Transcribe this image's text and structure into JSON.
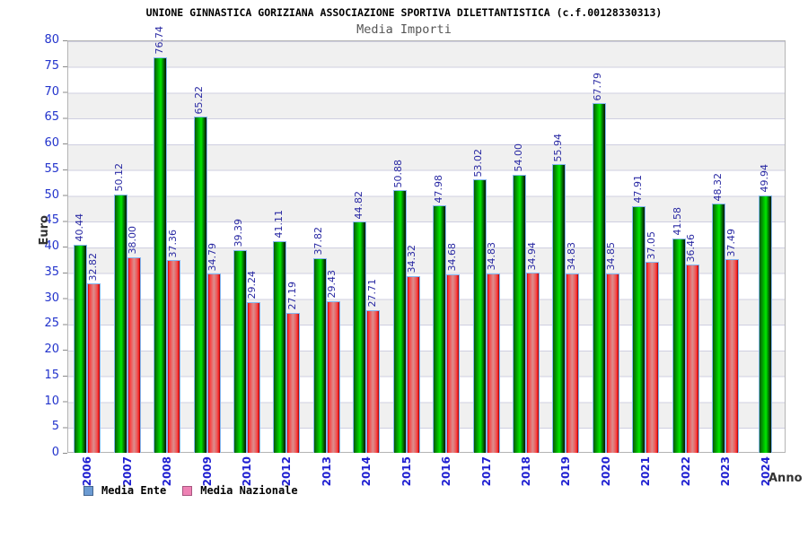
{
  "header": {
    "title": "UNIONE GINNASTICA GORIZIANA ASSOCIAZIONE SPORTIVA DILETTANTISTICA (c.f.00128330313)",
    "subtitle": "Media Importi"
  },
  "axes": {
    "y_label": "Euro",
    "x_label": "Anno",
    "y_ticks": [
      0,
      5,
      10,
      15,
      20,
      25,
      30,
      35,
      40,
      45,
      50,
      55,
      60,
      65,
      70,
      75,
      80
    ]
  },
  "legend": [
    {
      "label": "Media Ente",
      "color": "#6c9bd2"
    },
    {
      "label": "Media Nazionale",
      "color": "#ee82b4"
    }
  ],
  "colors": {
    "bar_ente_main": "#00cc00",
    "bar_nazionale_main": "#ee3333",
    "value_label": "#2929a3",
    "axis_label": "#2233cc",
    "year_label": "#1f1fd1"
  },
  "chart_data": {
    "type": "bar",
    "title": "UNIONE GINNASTICA GORIZIANA ASSOCIAZIONE SPORTIVA DILETTANTISTICA (c.f.00128330313)",
    "subtitle": "Media Importi",
    "xlabel": "Anno",
    "ylabel": "Euro",
    "ylim": [
      0,
      80
    ],
    "grid": true,
    "legend_position": "bottom-left",
    "categories": [
      "2006",
      "2007",
      "2008",
      "2009",
      "2010",
      "2012",
      "2013",
      "2014",
      "2015",
      "2016",
      "2017",
      "2018",
      "2019",
      "2020",
      "2021",
      "2022",
      "2023",
      "2024"
    ],
    "series": [
      {
        "name": "Media Ente",
        "values": [
          40.44,
          50.12,
          76.74,
          65.22,
          39.39,
          41.11,
          37.82,
          44.82,
          50.88,
          47.98,
          53.02,
          54.0,
          55.94,
          67.79,
          47.91,
          41.58,
          48.32,
          49.94
        ]
      },
      {
        "name": "Media Nazionale",
        "values": [
          32.82,
          38.0,
          37.36,
          34.79,
          29.24,
          27.19,
          29.43,
          27.71,
          34.32,
          34.68,
          34.83,
          34.94,
          34.83,
          34.85,
          37.05,
          36.46,
          37.49,
          null
        ]
      }
    ]
  }
}
